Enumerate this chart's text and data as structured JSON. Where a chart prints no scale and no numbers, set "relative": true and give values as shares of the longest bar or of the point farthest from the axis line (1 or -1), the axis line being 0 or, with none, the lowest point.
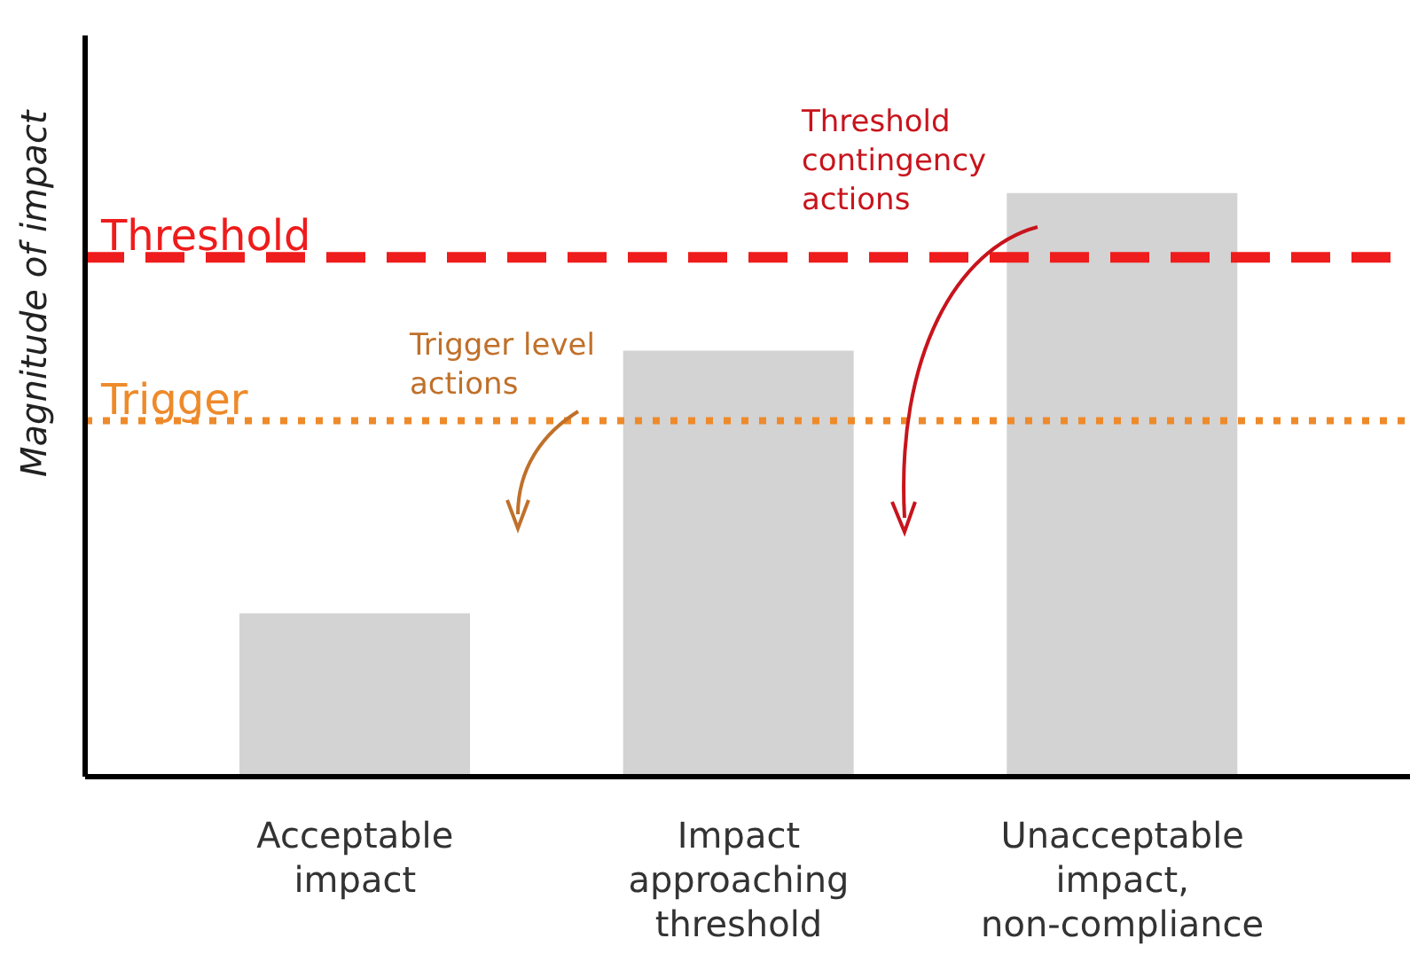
{
  "chart_data": {
    "type": "bar",
    "relative": true,
    "ylabel": "Magnitude of impact",
    "categories": [
      "Acceptable impact",
      "Impact approaching threshold",
      "Unacceptable impact, non-compliance"
    ],
    "values": [
      0.28,
      0.73,
      1
    ],
    "color": "#d3d3d3",
    "ref_lines": [
      {
        "axis": "y",
        "value": 0.89,
        "label": "Threshold",
        "color": "#ee1c1c",
        "line_style": "dashed"
      },
      {
        "axis": "y",
        "value": 0.61,
        "label": "Trigger",
        "color": "#ee8a2a",
        "line_style": "dotted"
      }
    ],
    "annotations": [
      "Threshold contingency actions",
      "Trigger level actions"
    ],
    "grid": false,
    "legend": false
  }
}
